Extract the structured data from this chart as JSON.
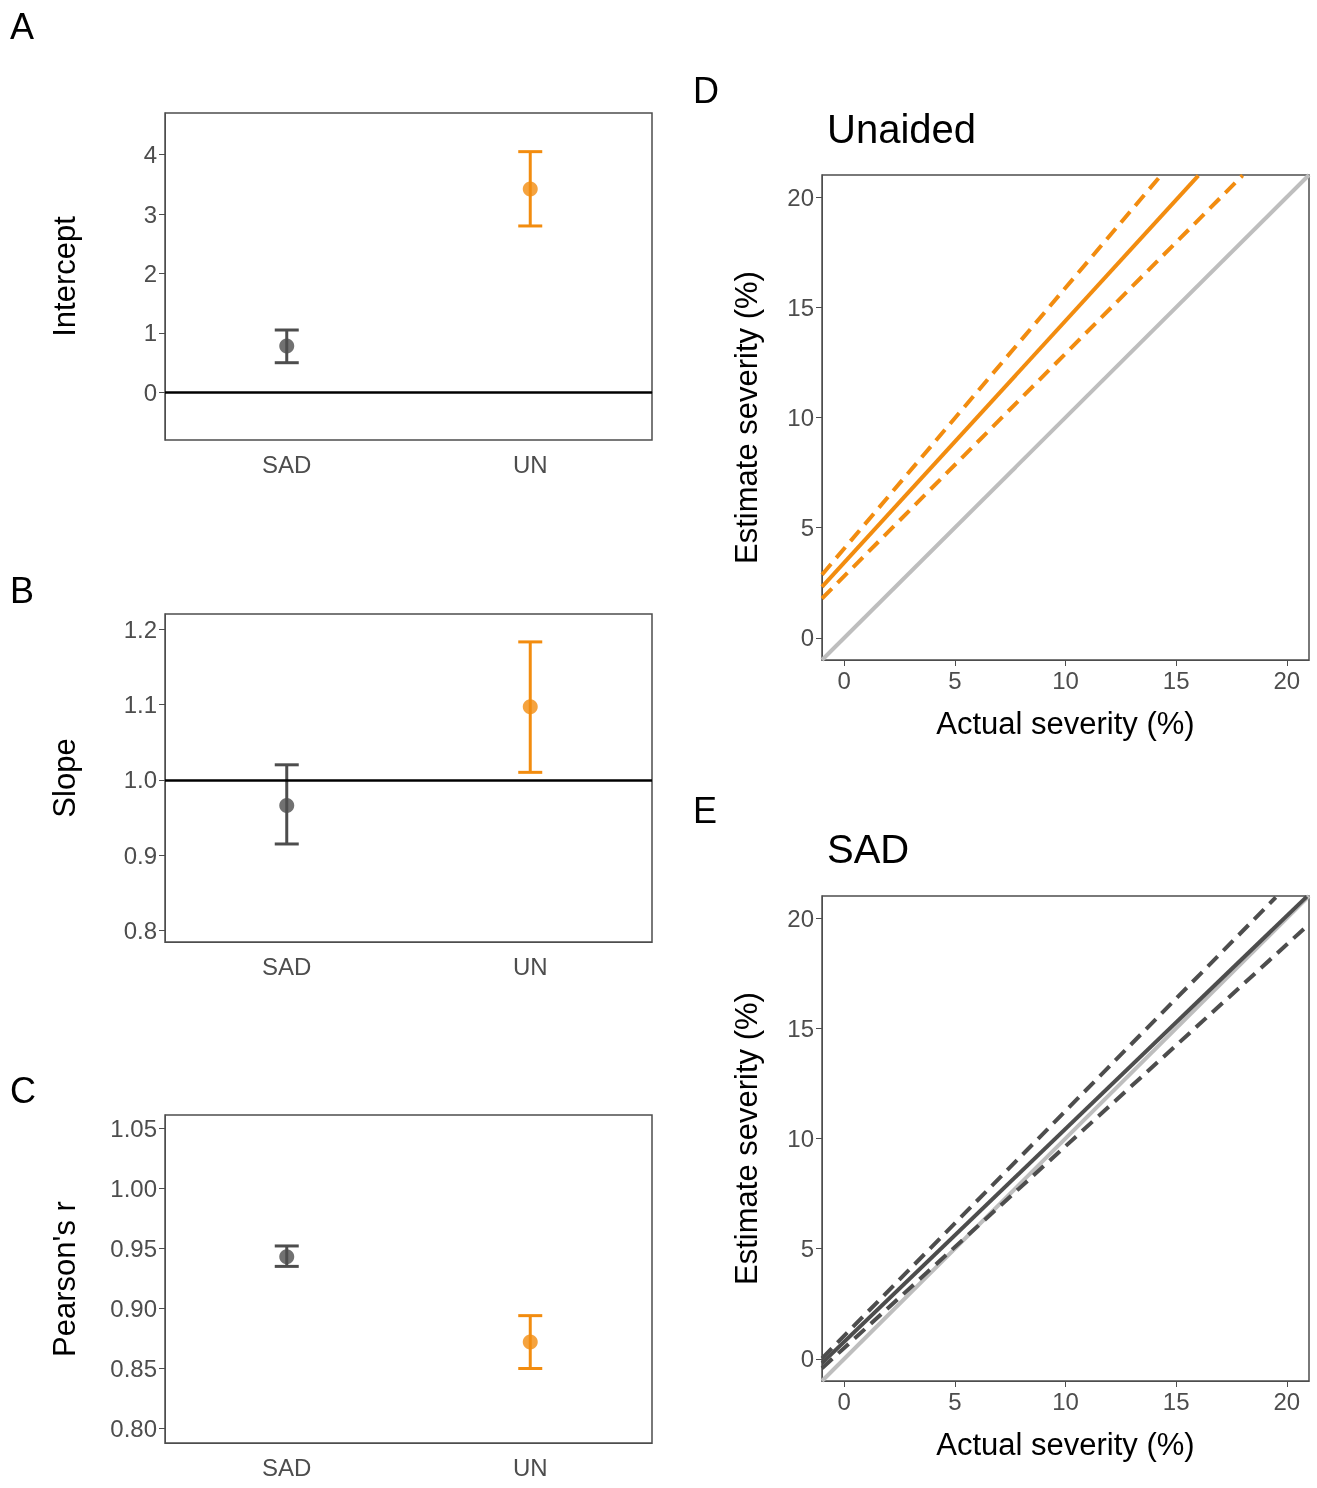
{
  "chart_data": [
    {
      "type": "scatter",
      "annotations": [
        "A"
      ],
      "ylabel": "Intercept",
      "categories": [
        "SAD",
        "UN"
      ],
      "values": [
        0.78,
        3.42
      ],
      "errors": [
        [
          0.5,
          1.05
        ],
        [
          2.8,
          4.05
        ]
      ],
      "colors": [
        "#4d4d4d",
        "#f28c0f"
      ],
      "ylim": [
        -0.8,
        4.7
      ],
      "yticks": [
        0,
        1,
        2,
        3,
        4
      ],
      "ref_lines": [
        {
          "axis": "y",
          "value": 0,
          "color": "#000000"
        }
      ],
      "grid": false,
      "marker": "circle"
    },
    {
      "type": "scatter",
      "annotations": [
        "B"
      ],
      "ylabel": "Slope",
      "categories": [
        "SAD",
        "UN"
      ],
      "values": [
        0.966,
        1.097
      ],
      "errors": [
        [
          0.915,
          1.02
        ],
        [
          1.01,
          1.183
        ]
      ],
      "colors": [
        "#4d4d4d",
        "#f28c0f"
      ],
      "ylim": [
        0.785,
        1.22
      ],
      "yticks": [
        {
          "value": 0.8,
          "label": "0.8"
        },
        {
          "value": 0.9,
          "label": "0.9"
        },
        {
          "value": 1.0,
          "label": "1.0"
        },
        {
          "value": 1.1,
          "label": "1.1"
        },
        {
          "value": 1.2,
          "label": "1.2"
        }
      ],
      "ref_lines": [
        {
          "axis": "y",
          "value": 1.0,
          "color": "#000000"
        }
      ],
      "grid": false,
      "marker": "circle"
    },
    {
      "type": "scatter",
      "annotations": [
        "C"
      ],
      "ylabel": "Pearson's r",
      "categories": [
        "SAD",
        "UN"
      ],
      "values": [
        0.943,
        0.872
      ],
      "errors": [
        [
          0.935,
          0.952
        ],
        [
          0.85,
          0.894
        ]
      ],
      "colors": [
        "#4d4d4d",
        "#f28c0f"
      ],
      "ylim": [
        0.788,
        1.061
      ],
      "yticks": [
        {
          "value": 0.8,
          "label": "0.80"
        },
        {
          "value": 0.85,
          "label": "0.85"
        },
        {
          "value": 0.9,
          "label": "0.90"
        },
        {
          "value": 0.95,
          "label": "0.95"
        },
        {
          "value": 1.0,
          "label": "1.00"
        },
        {
          "value": 1.05,
          "label": "1.05"
        }
      ],
      "grid": false,
      "marker": "circle"
    },
    {
      "type": "line",
      "title": "Unaided",
      "annotations": [
        "D"
      ],
      "xlabel": "Actual severity (%)",
      "ylabel": "Estimate severity (%)",
      "xlim": [
        -1,
        21
      ],
      "ylim": [
        -1,
        21
      ],
      "xticks": [
        0,
        5,
        10,
        15,
        20
      ],
      "yticks": [
        0,
        5,
        10,
        15,
        20
      ],
      "grid": false,
      "marker": "none",
      "series": [
        {
          "x": [
            -1,
            21
          ],
          "values": [
            -1,
            21
          ],
          "color": "#bebebe",
          "line_style": "solid"
        },
        {
          "x": [
            -1,
            16
          ],
          "values": [
            2.32,
            20.97
          ],
          "color": "#f28c0f",
          "line_style": "solid"
        },
        {
          "x": [
            -1,
            14.3
          ],
          "values": [
            2.87,
            20.97
          ],
          "color": "#f28c0f",
          "line_style": "dashed"
        },
        {
          "x": [
            -1,
            18
          ],
          "values": [
            1.79,
            20.98
          ],
          "color": "#f28c0f",
          "line_style": "dashed"
        }
      ]
    },
    {
      "type": "line",
      "title": "SAD",
      "annotations": [
        "E"
      ],
      "xlabel": "Actual severity (%)",
      "ylabel": "Estimate severity (%)",
      "xlim": [
        -1,
        21
      ],
      "ylim": [
        -1,
        21
      ],
      "xticks": [
        0,
        5,
        10,
        15,
        20
      ],
      "yticks": [
        0,
        5,
        10,
        15,
        20
      ],
      "grid": false,
      "marker": "none",
      "series": [
        {
          "x": [
            -1,
            21
          ],
          "values": [
            -1,
            21
          ],
          "color": "#bebebe",
          "line_style": "solid"
        },
        {
          "x": [
            -1,
            20.9
          ],
          "values": [
            -0.19,
            20.97
          ],
          "color": "#4d4d4d",
          "line_style": "solid"
        },
        {
          "x": [
            -1,
            19.5
          ],
          "values": [
            0.03,
            20.94
          ],
          "color": "#4d4d4d",
          "line_style": "dashed"
        },
        {
          "x": [
            -1,
            21
          ],
          "values": [
            -0.42,
            19.72
          ],
          "color": "#4d4d4d",
          "line_style": "dashed"
        }
      ]
    }
  ]
}
